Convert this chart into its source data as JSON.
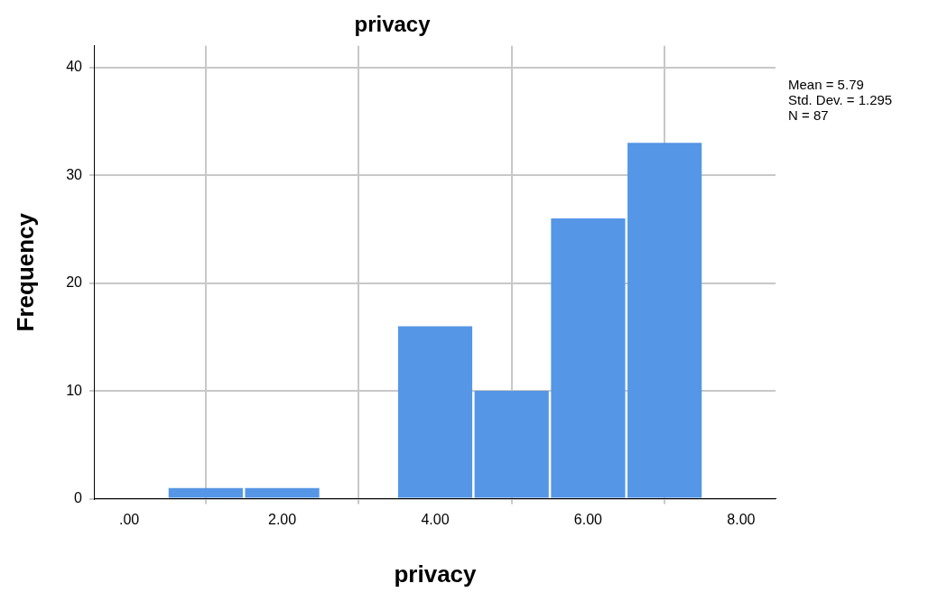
{
  "chart_data": {
    "type": "histogram",
    "title": "privacy",
    "xlabel": "privacy",
    "ylabel": "Frequency",
    "bins": [
      0.5,
      1.5,
      2.5,
      3.5,
      4.5,
      5.5,
      6.5,
      7.5
    ],
    "values": [
      1,
      1,
      0,
      16,
      10,
      26,
      33
    ],
    "color": "#5596e6",
    "xlim": [
      -0.45,
      8.45
    ],
    "xticks": [
      {
        "value": 0,
        "label": ".00"
      },
      {
        "value": 2,
        "label": "2.00"
      },
      {
        "value": 4,
        "label": "4.00"
      },
      {
        "value": 6,
        "label": "6.00"
      },
      {
        "value": 8,
        "label": "8.00"
      }
    ],
    "ylim": [
      0,
      42
    ],
    "yticks": [
      0,
      10,
      20,
      30,
      40
    ],
    "grid": true,
    "legend": false,
    "annotations": [
      "Mean = 5.79",
      "Std. Dev. = 1.295",
      "N = 87"
    ]
  }
}
